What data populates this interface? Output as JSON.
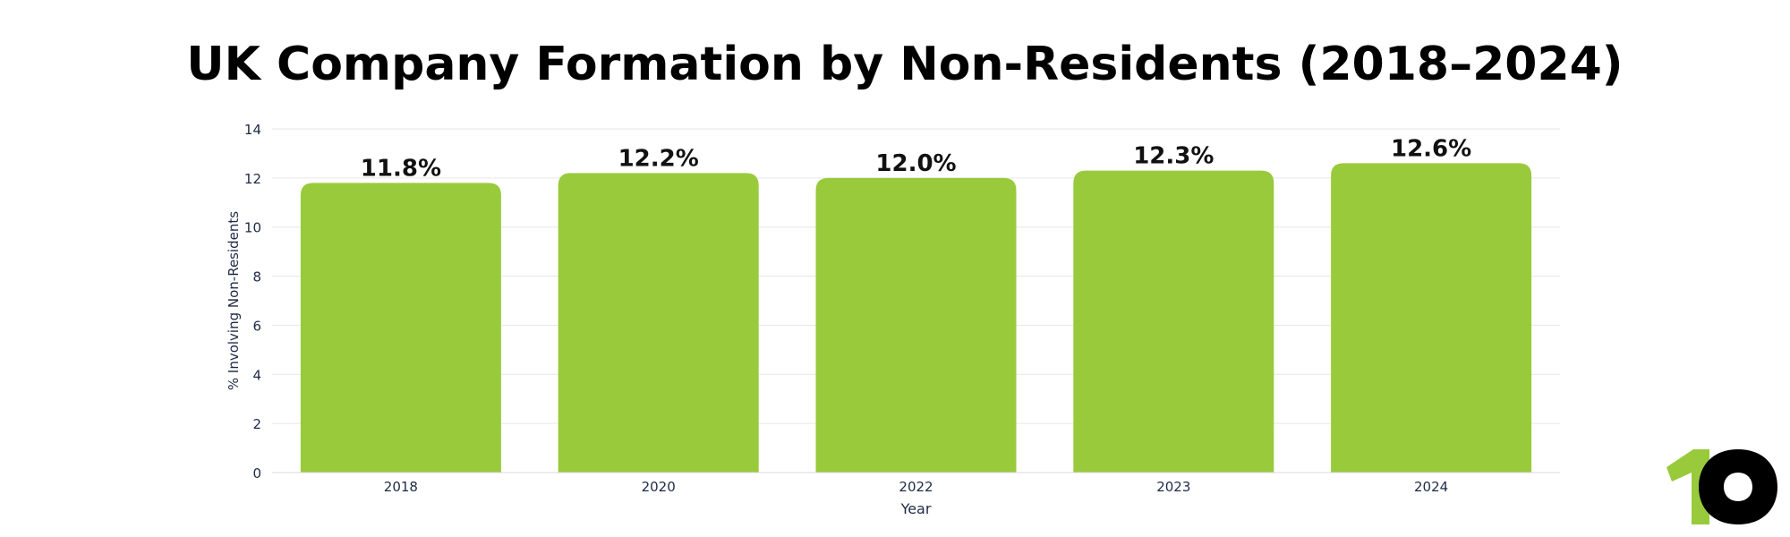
{
  "chart_data": {
    "type": "bar",
    "title": "UK Company Formation by Non-Residents (2018–2024)",
    "xlabel": "Year",
    "ylabel": "% Involving Non-Residents",
    "categories": [
      "2018",
      "2020",
      "2022",
      "2023",
      "2024"
    ],
    "values": [
      11.8,
      12.2,
      12.0,
      12.3,
      12.6
    ],
    "data_labels": [
      "11.8%",
      "12.2%",
      "12.0%",
      "12.3%",
      "12.6%"
    ],
    "y_ticks": [
      0,
      2,
      4,
      6,
      8,
      10,
      12,
      14
    ],
    "ylim": [
      0,
      14
    ],
    "grid": true,
    "legend": "none",
    "colors": {
      "bar": "#99ca3c",
      "grid": "#e6e6e6",
      "axis_text": "#1f2a44",
      "label_text": "#111111"
    }
  },
  "logo": {
    "text": "10",
    "colors": {
      "one": "#99ca3c",
      "zero": "#000000"
    }
  }
}
